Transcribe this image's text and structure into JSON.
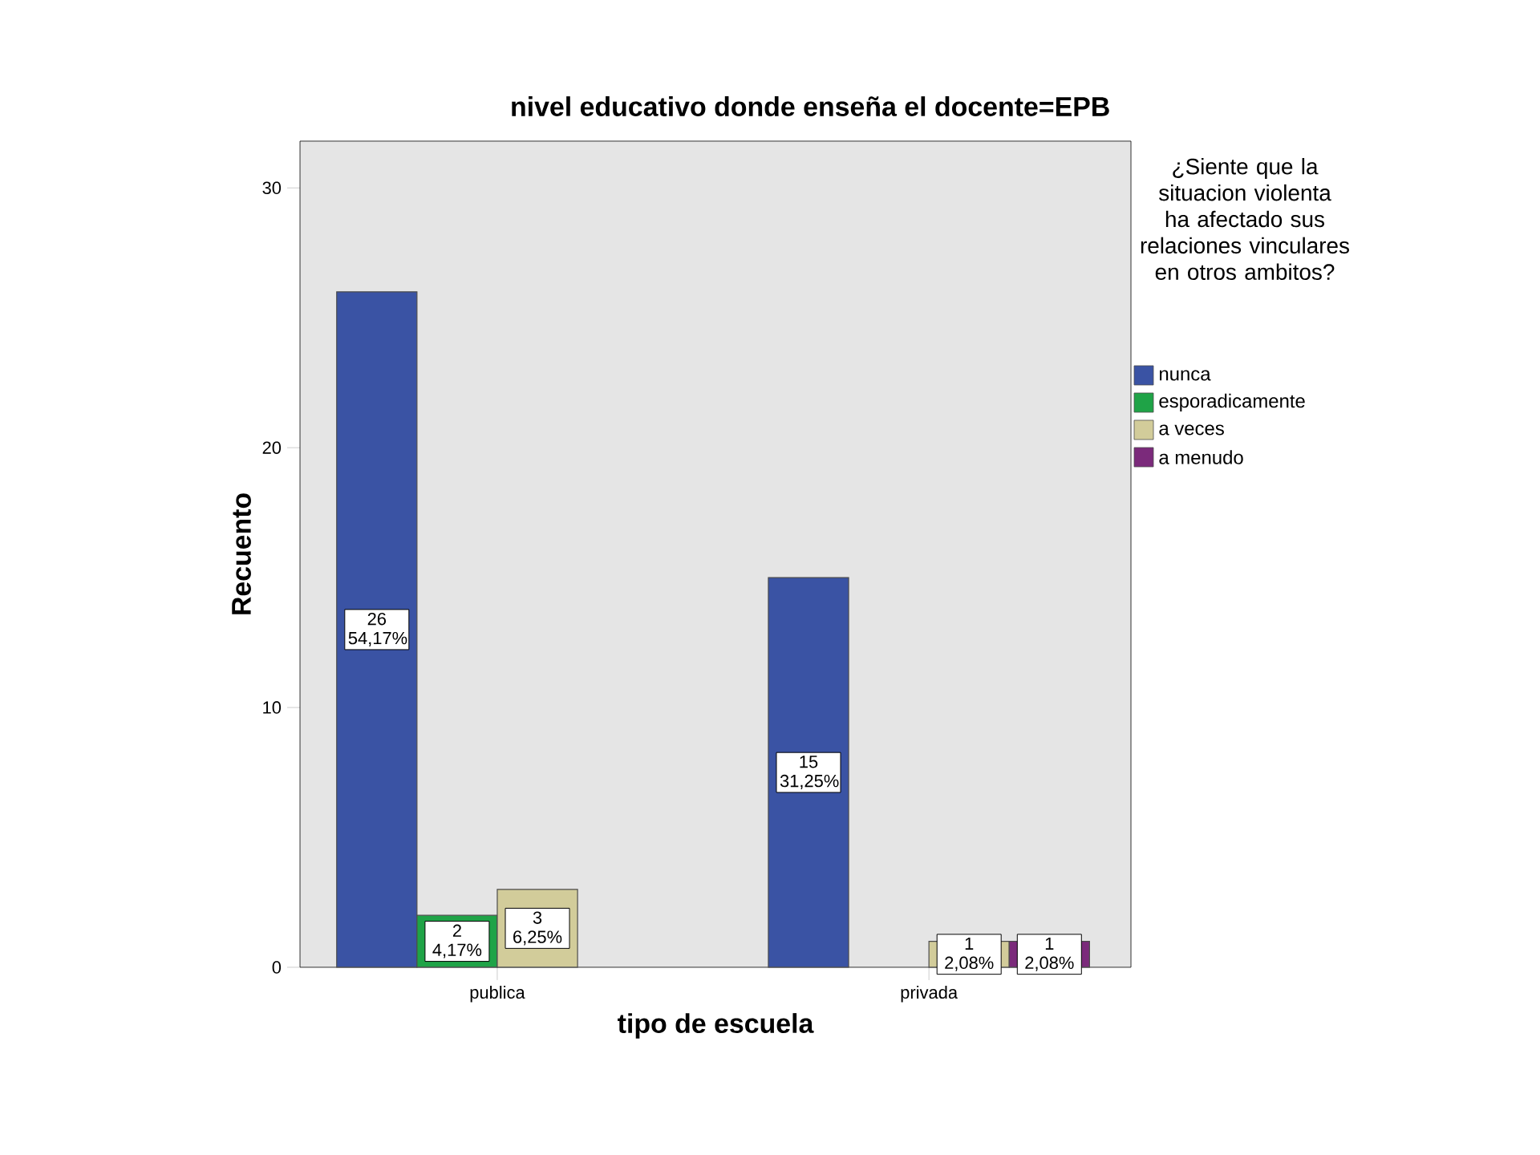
{
  "chart_data": {
    "type": "bar",
    "title": "nivel educativo donde enseña el docente=EPB",
    "xlabel": "tipo de escuela",
    "ylabel": "Recuento",
    "legend_title": "¿Siente que la situacion violenta ha afectado sus relaciones vinculares en otros ambitos?",
    "categories": [
      "publica",
      "privada"
    ],
    "ylim": [
      0,
      31.8
    ],
    "yticks": [
      0,
      10,
      20,
      30
    ],
    "legend": "right",
    "series": [
      {
        "name": "nunca",
        "color": "#3a53a4",
        "values": [
          26,
          15
        ],
        "value_labels": [
          "26 54,17%",
          "15 31,25%"
        ]
      },
      {
        "name": "esporadicamente",
        "color": "#1fa347",
        "values": [
          2,
          null
        ],
        "value_labels": [
          "2 4,17%",
          null
        ]
      },
      {
        "name": "a veces",
        "color": "#d2cc9a",
        "values": [
          3,
          1
        ],
        "value_labels": [
          "3 6,25%",
          "1 2,08%"
        ]
      },
      {
        "name": "a menudo",
        "color": "#7b2a7b",
        "values": [
          null,
          1
        ],
        "value_labels": [
          null,
          "1 2,08%"
        ]
      }
    ]
  }
}
